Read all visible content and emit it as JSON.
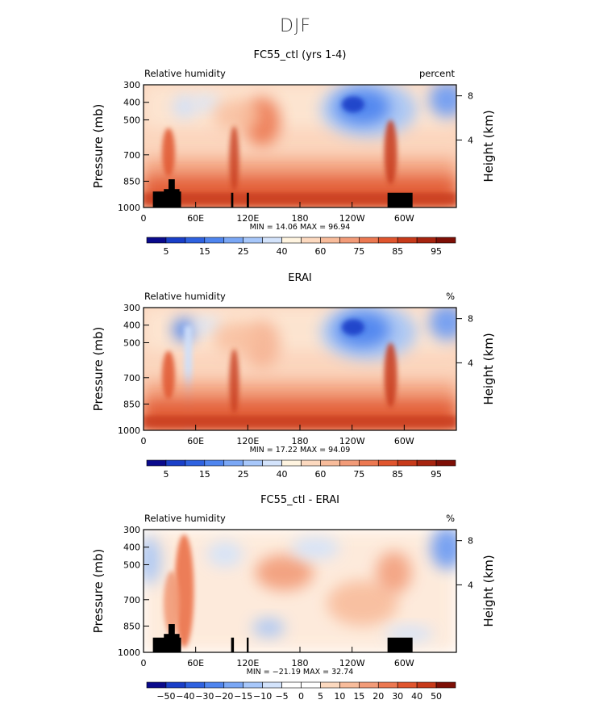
{
  "page_title": "DJF",
  "chart_data": [
    {
      "type": "heatmap",
      "title": "FC55_ctl (yrs 1-4)",
      "variable_label": "Relative humidity",
      "units": "percent",
      "ylabel": "Pressure (mb)",
      "y2label": "Height (km)",
      "x_ticks": [
        "0",
        "60E",
        "120E",
        "180",
        "120W",
        "60W"
      ],
      "y_ticks": [
        "300",
        "400",
        "500",
        "700",
        "850",
        "1000"
      ],
      "y2_ticks": [
        "8",
        "4"
      ],
      "min_max_text": "MIN =   14.06   MAX =   96.94",
      "min": 14.06,
      "max": 96.94,
      "colorbar_labels": [
        "5",
        "15",
        "25",
        "40",
        "60",
        "75",
        "85",
        "95"
      ],
      "colorbar_colors": [
        "#0a0a8c",
        "#1a3fc8",
        "#2f62e0",
        "#4f85ef",
        "#7aa7f5",
        "#a7c7fa",
        "#d3e3fb",
        "#fff4e0",
        "#fcd9bf",
        "#f8bc9b",
        "#f29b78",
        "#ec7851",
        "#e0552e",
        "#c73a1a",
        "#a6240f",
        "#7e0f06"
      ]
    },
    {
      "type": "heatmap",
      "title": "ERAI",
      "variable_label": "Relative humidity",
      "units": "%",
      "ylabel": "Pressure (mb)",
      "y2label": "Height (km)",
      "x_ticks": [
        "0",
        "60E",
        "120E",
        "180",
        "120W",
        "60W"
      ],
      "y_ticks": [
        "300",
        "400",
        "500",
        "700",
        "850",
        "1000"
      ],
      "y2_ticks": [
        "8",
        "4"
      ],
      "min_max_text": "MIN =   17.22   MAX =   94.09",
      "min": 17.22,
      "max": 94.09,
      "colorbar_labels": [
        "5",
        "15",
        "25",
        "40",
        "60",
        "75",
        "85",
        "95"
      ],
      "colorbar_colors": [
        "#0a0a8c",
        "#1a3fc8",
        "#2f62e0",
        "#4f85ef",
        "#7aa7f5",
        "#a7c7fa",
        "#d3e3fb",
        "#fff4e0",
        "#fcd9bf",
        "#f8bc9b",
        "#f29b78",
        "#ec7851",
        "#e0552e",
        "#c73a1a",
        "#a6240f",
        "#7e0f06"
      ]
    },
    {
      "type": "heatmap",
      "title": "FC55_ctl - ERAI",
      "variable_label": "Relative humidity",
      "units": "%",
      "ylabel": "Pressure (mb)",
      "y2label": "Height (km)",
      "x_ticks": [
        "0",
        "60E",
        "120E",
        "180",
        "120W",
        "60W"
      ],
      "y_ticks": [
        "300",
        "400",
        "500",
        "700",
        "850",
        "1000"
      ],
      "y2_ticks": [
        "8",
        "4"
      ],
      "min_max_text": "MIN = −21.19   MAX =   32.74",
      "min": -21.19,
      "max": 32.74,
      "colorbar_labels": [
        "−50",
        "−40",
        "−30",
        "−20",
        "−15",
        "−10",
        "−5",
        "0",
        "5",
        "10",
        "15",
        "20",
        "30",
        "40",
        "50"
      ],
      "colorbar_colors": [
        "#0a0a8c",
        "#1a3fc8",
        "#2f62e0",
        "#4f85ef",
        "#7aa7f5",
        "#a7c7fa",
        "#d3e3fb",
        "#ffffff",
        "#ffffff",
        "#fcd9bf",
        "#f8bc9b",
        "#f29b78",
        "#ec7851",
        "#e0552e",
        "#c73a1a",
        "#7e0f06"
      ]
    }
  ]
}
